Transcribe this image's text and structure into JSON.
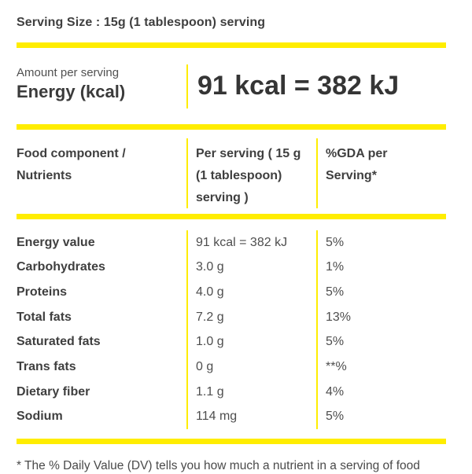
{
  "label": {
    "serving_size": "Serving Size : 15g (1 tablespoon) serving"
  },
  "energy": {
    "amount_label": "Amount per serving",
    "name": "Energy (kcal)",
    "value": "91 kcal = 382 kJ"
  },
  "table": {
    "columns": [
      "Food component / Nutrients",
      "Per serving ( 15 g (1 tablespoon) serving )",
      "%GDA per Serving*"
    ],
    "rows": [
      {
        "name": "Energy value",
        "per_serving": "91 kcal = 382 kJ",
        "gda": "5%"
      },
      {
        "name": "Carbohydrates",
        "per_serving": "3.0 g",
        "gda": "1%"
      },
      {
        "name": "Proteins",
        "per_serving": "4.0 g",
        "gda": "5%"
      },
      {
        "name": "Total fats",
        "per_serving": "7.2 g",
        "gda": "13%"
      },
      {
        "name": "Saturated fats",
        "per_serving": "1.0 g",
        "gda": "5%"
      },
      {
        "name": "Trans fats",
        "per_serving": "0 g",
        "gda": "**%"
      },
      {
        "name": "Dietary fiber",
        "per_serving": "1.1 g",
        "gda": "4%"
      },
      {
        "name": "Sodium",
        "per_serving": "114 mg",
        "gda": "5%"
      }
    ]
  },
  "footnote": "* The % Daily Value (DV) tells you how much a nutrient in a serving of food",
  "colors": {
    "accent_yellow": "#ffed00",
    "text_dark": "#3b3b3b",
    "text_value": "#4e4e4e"
  }
}
